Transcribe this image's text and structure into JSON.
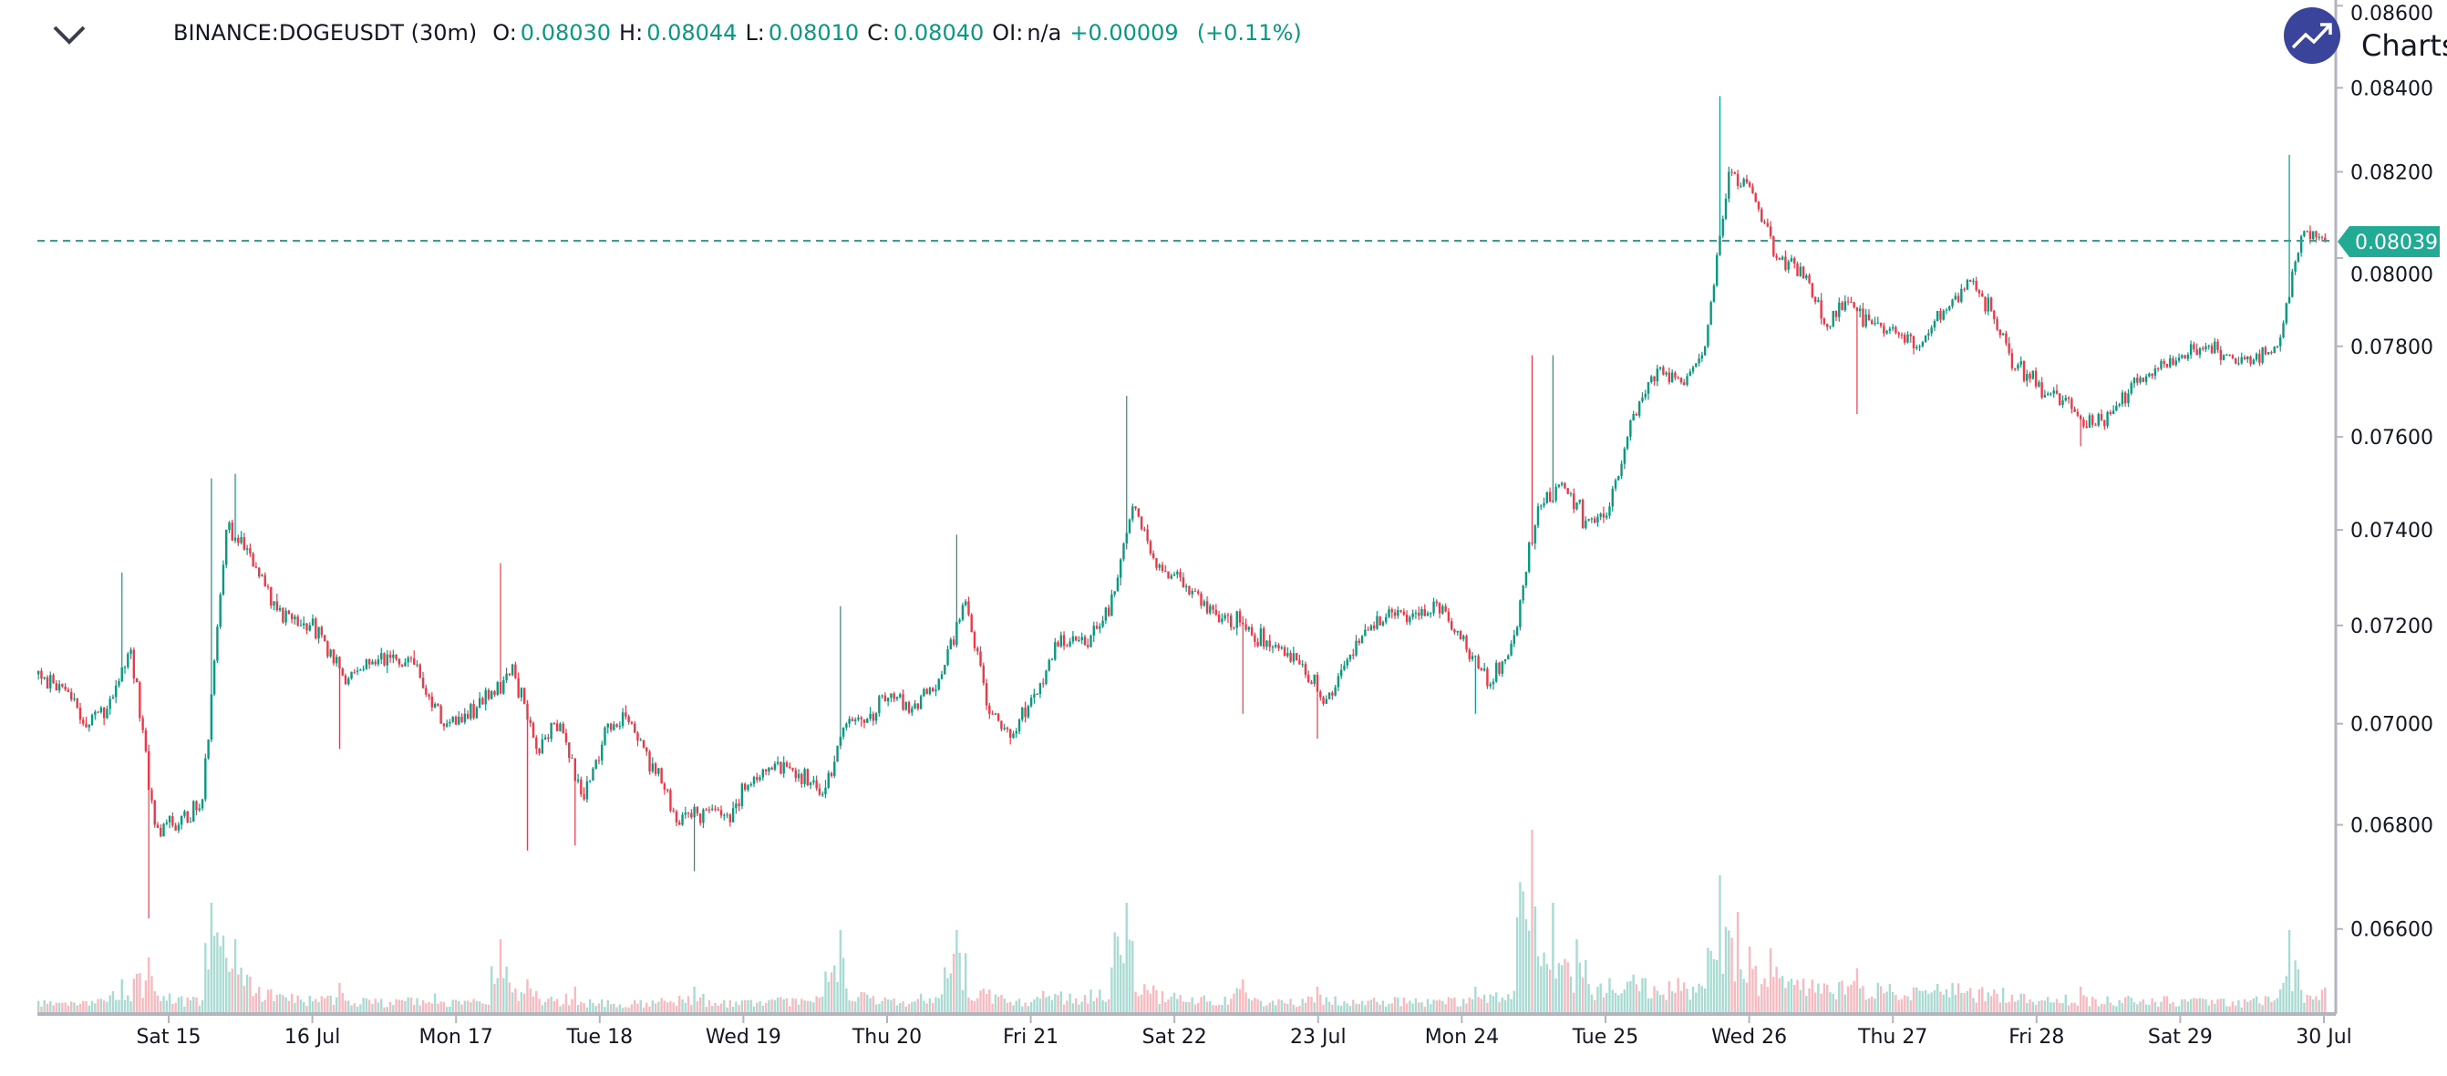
{
  "header": {
    "symbol": "BINANCE:DOGEUSDT (30m)",
    "o_label": "O:",
    "o_value": "0.08030",
    "h_label": "H:",
    "h_value": "0.08044",
    "l_label": "L:",
    "l_value": "0.08010",
    "c_label": "C:",
    "c_value": "0.08040",
    "oi_label": "OI:",
    "oi_value": "n/a",
    "change": "+0.00009",
    "change_pct": "(+0.11%)"
  },
  "branding": {
    "text": "Charts p",
    "icon": "trend-up-icon"
  },
  "colors": {
    "up": "#089981",
    "down": "#f23645",
    "last_price": "#22ab94",
    "axis": "#b2b5be",
    "logo": "#3a449b"
  },
  "chart_data": {
    "type": "candlestick",
    "title": "BINANCE:DOGEUSDT (30m)",
    "scale": "log",
    "interval": "30m",
    "ylim": [
      0.0648,
      0.0862
    ],
    "y_ticks": [
      "0.08600",
      "0.08400",
      "0.08200",
      "0.08000",
      "0.07800",
      "0.07600",
      "0.07400",
      "0.07200",
      "0.07000",
      "0.06800",
      "0.06600"
    ],
    "x_ticks": [
      "Sat 15",
      "16 Jul",
      "Mon 17",
      "Tue 18",
      "Wed 19",
      "Thu 20",
      "Fri 21",
      "Sat 22",
      "23 Jul",
      "Mon 24",
      "Tue 25",
      "Wed 26",
      "Thu 27",
      "Fri 28",
      "Sat 29",
      "30 Jul"
    ],
    "last_price": "0.08039",
    "closes_4h": [
      0.071,
      0.0708,
      0.07,
      0.0703,
      0.0715,
      0.068,
      0.068,
      0.0685,
      0.074,
      0.0735,
      0.0725,
      0.072,
      0.0718,
      0.0708,
      0.0712,
      0.0714,
      0.0712,
      0.07,
      0.0702,
      0.0705,
      0.0712,
      0.0695,
      0.07,
      0.0685,
      0.07,
      0.07,
      0.069,
      0.068,
      0.0683,
      0.0682,
      0.0688,
      0.0692,
      0.069,
      0.0686,
      0.07,
      0.0702,
      0.0705,
      0.0703,
      0.071,
      0.0725,
      0.0702,
      0.0698,
      0.0706,
      0.0718,
      0.0716,
      0.0722,
      0.0745,
      0.0732,
      0.073,
      0.0725,
      0.0722,
      0.0718,
      0.0716,
      0.0712,
      0.0704,
      0.0713,
      0.072,
      0.0722,
      0.0722,
      0.0724,
      0.0715,
      0.0708,
      0.0718,
      0.0745,
      0.075,
      0.0742,
      0.0745,
      0.0765,
      0.0775,
      0.0772,
      0.078,
      0.082,
      0.0815,
      0.08,
      0.0798,
      0.0785,
      0.079,
      0.0785,
      0.0783,
      0.078,
      0.0788,
      0.0795,
      0.0788,
      0.0775,
      0.0772,
      0.0768,
      0.0762,
      0.0765,
      0.0773,
      0.0775,
      0.0778,
      0.078,
      0.0778,
      0.0777,
      0.078,
      0.0805,
      0.0804
    ],
    "extremes": [
      {
        "bar": 4,
        "high": 0.0731
      },
      {
        "bar": 5,
        "low": 0.0662
      },
      {
        "bar": 8,
        "high": 0.0751
      },
      {
        "bar": 9,
        "high": 0.0752
      },
      {
        "bar": 13,
        "low": 0.0695
      },
      {
        "bar": 20,
        "high": 0.0733
      },
      {
        "bar": 21,
        "low": 0.0675
      },
      {
        "bar": 23,
        "low": 0.0676
      },
      {
        "bar": 28,
        "low": 0.0671
      },
      {
        "bar": 34,
        "high": 0.0724
      },
      {
        "bar": 39,
        "high": 0.0739
      },
      {
        "bar": 46,
        "high": 0.0769
      },
      {
        "bar": 51,
        "low": 0.0702
      },
      {
        "bar": 54,
        "low": 0.0697
      },
      {
        "bar": 61,
        "low": 0.0702
      },
      {
        "bar": 63,
        "high": 0.0778
      },
      {
        "bar": 64,
        "high": 0.0778
      },
      {
        "bar": 71,
        "high": 0.0838
      },
      {
        "bar": 77,
        "low": 0.0765
      },
      {
        "bar": 86,
        "low": 0.0758
      },
      {
        "bar": 95,
        "high": 0.0824
      }
    ],
    "volume_4h": [
      12,
      10,
      9,
      10,
      18,
      30,
      14,
      12,
      60,
      40,
      20,
      14,
      12,
      16,
      11,
      10,
      12,
      14,
      10,
      11,
      40,
      18,
      12,
      14,
      10,
      9,
      10,
      12,
      14,
      10,
      9,
      10,
      11,
      12,
      45,
      15,
      12,
      11,
      14,
      45,
      20,
      14,
      12,
      16,
      14,
      18,
      60,
      22,
      16,
      14,
      12,
      18,
      11,
      10,
      14,
      12,
      10,
      12,
      11,
      10,
      12,
      14,
      16,
      100,
      60,
      40,
      25,
      30,
      28,
      25,
      22,
      75,
      55,
      35,
      28,
      25,
      26,
      24,
      22,
      20,
      22,
      24,
      20,
      18,
      16,
      15,
      14,
      12,
      12,
      11,
      12,
      11,
      10,
      10,
      12,
      45,
      20
    ]
  }
}
